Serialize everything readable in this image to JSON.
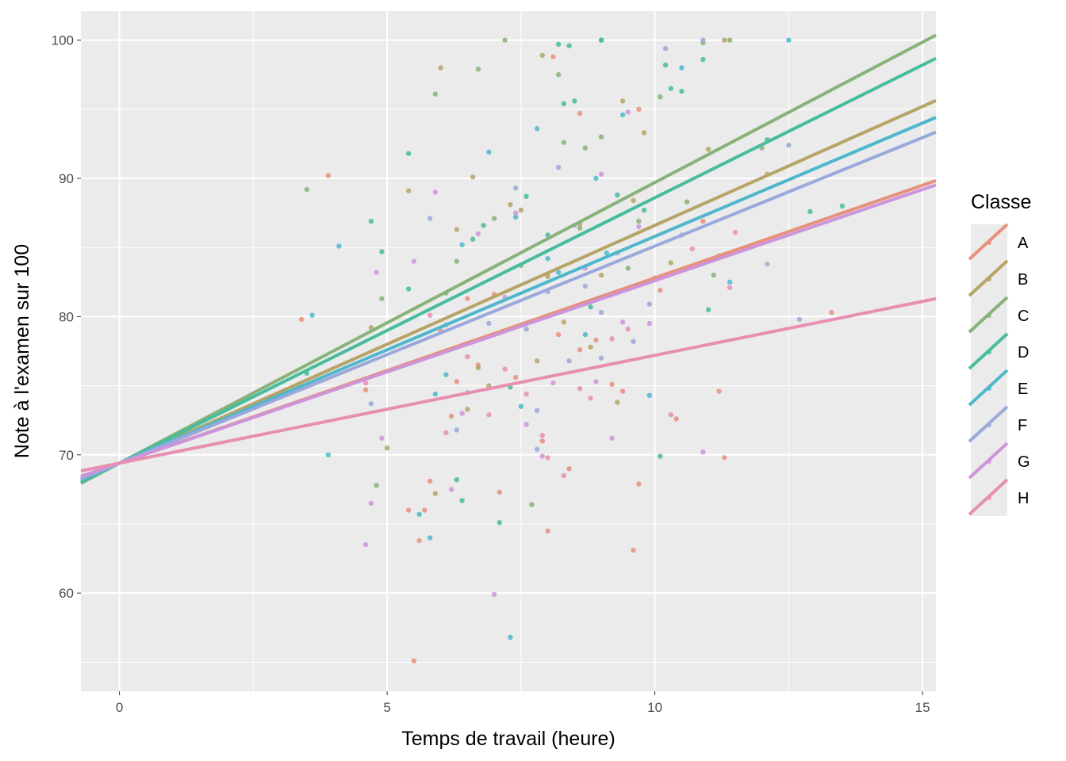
{
  "chart_data": {
    "type": "scatter",
    "title": "",
    "xlabel": "Temps de travail (heure)",
    "ylabel": "Note à l'examen sur 100",
    "xlim": [
      -0.72,
      15.25
    ],
    "ylim": [
      52.9,
      102.1
    ],
    "x_ticks": [
      0,
      5,
      10,
      15
    ],
    "y_ticks": [
      60,
      70,
      80,
      90,
      100
    ],
    "grid": true,
    "legend_position": "right",
    "legend_title": "Classe",
    "series": [
      {
        "name": "A",
        "color": "#e7907c",
        "regression": {
          "intercept": 69.4,
          "slope": 1.34
        },
        "points": [
          [
            3.4,
            79.8
          ],
          [
            3.9,
            90.2
          ],
          [
            4.6,
            74.7
          ],
          [
            5.4,
            66.0
          ],
          [
            5.5,
            55.1
          ],
          [
            5.6,
            63.8
          ],
          [
            5.7,
            66.0
          ],
          [
            5.8,
            68.1
          ],
          [
            6.0,
            79.0
          ],
          [
            6.2,
            72.8
          ],
          [
            6.3,
            75.3
          ],
          [
            6.5,
            81.3
          ],
          [
            6.7,
            76.5
          ],
          [
            7.0,
            81.6
          ],
          [
            7.1,
            67.3
          ],
          [
            7.4,
            75.6
          ],
          [
            7.9,
            71.0
          ],
          [
            8.0,
            64.5
          ],
          [
            8.2,
            78.7
          ],
          [
            8.4,
            69.0
          ],
          [
            8.6,
            77.6
          ],
          [
            8.9,
            78.3
          ],
          [
            9.2,
            75.1
          ],
          [
            9.4,
            74.6
          ],
          [
            9.6,
            63.1
          ],
          [
            9.7,
            67.9
          ],
          [
            10.1,
            81.9
          ],
          [
            10.4,
            72.6
          ],
          [
            10.9,
            86.9
          ],
          [
            11.2,
            74.6
          ],
          [
            11.3,
            69.8
          ],
          [
            13.3,
            80.3
          ],
          [
            8.1,
            98.8
          ],
          [
            8.6,
            94.7
          ],
          [
            9.7,
            95.0
          ]
        ]
      },
      {
        "name": "B",
        "color": "#b5a466",
        "regression": {
          "intercept": 69.4,
          "slope": 1.72
        },
        "points": [
          [
            4.7,
            79.2
          ],
          [
            5.0,
            70.5
          ],
          [
            5.4,
            89.1
          ],
          [
            5.9,
            67.2
          ],
          [
            6.0,
            98.0
          ],
          [
            6.3,
            86.3
          ],
          [
            6.5,
            73.3
          ],
          [
            6.7,
            76.3
          ],
          [
            6.9,
            75.0
          ],
          [
            7.3,
            88.1
          ],
          [
            7.5,
            87.7
          ],
          [
            7.8,
            76.8
          ],
          [
            8.0,
            82.9
          ],
          [
            8.3,
            79.6
          ],
          [
            8.6,
            86.7
          ],
          [
            8.8,
            77.8
          ],
          [
            9.0,
            83.0
          ],
          [
            9.3,
            73.8
          ],
          [
            9.6,
            88.4
          ],
          [
            9.8,
            93.3
          ],
          [
            10.3,
            83.9
          ],
          [
            11.0,
            92.1
          ],
          [
            11.3,
            100.0
          ],
          [
            12.1,
            90.3
          ],
          [
            6.6,
            90.1
          ],
          [
            7.9,
            98.9
          ],
          [
            9.4,
            95.6
          ]
        ]
      },
      {
        "name": "C",
        "color": "#87b278",
        "regression": {
          "intercept": 69.4,
          "slope": 2.03
        },
        "points": [
          [
            3.5,
            89.2
          ],
          [
            4.8,
            67.8
          ],
          [
            4.9,
            81.3
          ],
          [
            5.9,
            96.1
          ],
          [
            6.1,
            81.7
          ],
          [
            6.3,
            84.0
          ],
          [
            6.7,
            97.9
          ],
          [
            7.2,
            100.0
          ],
          [
            7.5,
            83.7
          ],
          [
            7.7,
            66.4
          ],
          [
            8.2,
            97.5
          ],
          [
            8.3,
            92.6
          ],
          [
            8.6,
            86.4
          ],
          [
            8.7,
            92.2
          ],
          [
            9.0,
            100.0
          ],
          [
            9.0,
            93.0
          ],
          [
            9.5,
            83.5
          ],
          [
            9.7,
            86.9
          ],
          [
            10.1,
            95.9
          ],
          [
            10.6,
            88.3
          ],
          [
            10.9,
            99.8
          ],
          [
            11.4,
            100.0
          ],
          [
            12.0,
            92.2
          ],
          [
            11.1,
            83.0
          ],
          [
            7.0,
            87.1
          ]
        ]
      },
      {
        "name": "D",
        "color": "#47bc9e",
        "regression": {
          "intercept": 69.4,
          "slope": 1.92
        },
        "points": [
          [
            3.5,
            75.9
          ],
          [
            4.7,
            86.9
          ],
          [
            4.9,
            84.7
          ],
          [
            5.4,
            91.8
          ],
          [
            5.4,
            82.0
          ],
          [
            6.3,
            68.2
          ],
          [
            6.4,
            66.7
          ],
          [
            6.6,
            85.6
          ],
          [
            6.8,
            86.6
          ],
          [
            7.1,
            65.1
          ],
          [
            7.3,
            74.9
          ],
          [
            7.6,
            88.7
          ],
          [
            8.0,
            85.9
          ],
          [
            8.2,
            99.7
          ],
          [
            8.3,
            95.4
          ],
          [
            8.5,
            95.6
          ],
          [
            8.8,
            80.7
          ],
          [
            9.0,
            100.0
          ],
          [
            9.3,
            88.8
          ],
          [
            9.8,
            87.7
          ],
          [
            10.1,
            69.9
          ],
          [
            10.2,
            98.2
          ],
          [
            10.3,
            96.5
          ],
          [
            10.5,
            96.3
          ],
          [
            10.9,
            98.6
          ],
          [
            11.0,
            80.5
          ],
          [
            12.1,
            92.8
          ],
          [
            12.9,
            87.6
          ],
          [
            13.5,
            88.0
          ],
          [
            8.4,
            99.6
          ]
        ]
      },
      {
        "name": "E",
        "color": "#4fb7cc",
        "regression": {
          "intercept": 69.4,
          "slope": 1.64
        },
        "points": [
          [
            3.6,
            80.1
          ],
          [
            3.9,
            70.0
          ],
          [
            4.1,
            85.1
          ],
          [
            5.6,
            65.7
          ],
          [
            5.8,
            64.0
          ],
          [
            6.1,
            75.8
          ],
          [
            6.4,
            85.2
          ],
          [
            6.9,
            91.9
          ],
          [
            7.3,
            56.8
          ],
          [
            7.5,
            73.5
          ],
          [
            7.8,
            93.6
          ],
          [
            8.0,
            84.2
          ],
          [
            8.2,
            83.2
          ],
          [
            8.7,
            78.7
          ],
          [
            8.9,
            90.0
          ],
          [
            9.1,
            84.6
          ],
          [
            9.4,
            94.6
          ],
          [
            9.9,
            74.3
          ],
          [
            10.5,
            98.0
          ],
          [
            11.4,
            82.5
          ],
          [
            12.5,
            100.0
          ],
          [
            7.4,
            87.2
          ],
          [
            5.9,
            74.4
          ]
        ]
      },
      {
        "name": "F",
        "color": "#9aa8dc",
        "regression": {
          "intercept": 69.4,
          "slope": 1.57
        },
        "points": [
          [
            4.7,
            73.7
          ],
          [
            5.8,
            87.1
          ],
          [
            6.1,
            79.4
          ],
          [
            6.3,
            71.8
          ],
          [
            6.5,
            74.5
          ],
          [
            6.9,
            79.5
          ],
          [
            7.4,
            89.3
          ],
          [
            7.6,
            79.1
          ],
          [
            7.8,
            73.2
          ],
          [
            8.0,
            81.8
          ],
          [
            8.2,
            90.8
          ],
          [
            8.4,
            76.8
          ],
          [
            8.7,
            82.2
          ],
          [
            9.0,
            80.3
          ],
          [
            9.3,
            84.6
          ],
          [
            9.6,
            78.2
          ],
          [
            9.9,
            80.9
          ],
          [
            10.2,
            99.4
          ],
          [
            10.5,
            85.9
          ],
          [
            10.9,
            100.0
          ],
          [
            11.2,
            84.4
          ],
          [
            12.5,
            92.4
          ],
          [
            12.7,
            79.8
          ],
          [
            7.8,
            70.4
          ],
          [
            9.0,
            77.0
          ]
        ]
      },
      {
        "name": "G",
        "color": "#cc95db",
        "regression": {
          "intercept": 69.4,
          "slope": 1.32
        },
        "points": [
          [
            4.6,
            63.5
          ],
          [
            4.7,
            66.5
          ],
          [
            4.8,
            83.2
          ],
          [
            4.9,
            71.2
          ],
          [
            5.5,
            84.0
          ],
          [
            5.9,
            89.0
          ],
          [
            6.2,
            67.5
          ],
          [
            6.4,
            73.0
          ],
          [
            6.7,
            86.0
          ],
          [
            7.0,
            59.9
          ],
          [
            7.2,
            81.4
          ],
          [
            7.4,
            87.5
          ],
          [
            7.6,
            72.2
          ],
          [
            7.9,
            69.9
          ],
          [
            8.1,
            75.2
          ],
          [
            8.5,
            86.6
          ],
          [
            8.7,
            83.5
          ],
          [
            8.9,
            75.3
          ],
          [
            9.2,
            71.2
          ],
          [
            9.4,
            79.6
          ],
          [
            9.7,
            86.5
          ],
          [
            9.9,
            79.5
          ],
          [
            10.9,
            70.2
          ],
          [
            12.1,
            83.8
          ],
          [
            9.5,
            94.8
          ],
          [
            9.0,
            90.3
          ]
        ]
      },
      {
        "name": "H",
        "color": "#e78fb1",
        "regression": {
          "intercept": 69.4,
          "slope": 0.78
        },
        "points": [
          [
            4.6,
            75.2
          ],
          [
            5.8,
            80.1
          ],
          [
            6.1,
            71.6
          ],
          [
            6.5,
            77.1
          ],
          [
            6.9,
            72.9
          ],
          [
            7.2,
            76.2
          ],
          [
            7.6,
            74.4
          ],
          [
            8.0,
            69.8
          ],
          [
            8.3,
            68.5
          ],
          [
            8.6,
            74.8
          ],
          [
            8.8,
            74.1
          ],
          [
            9.2,
            78.4
          ],
          [
            9.5,
            79.1
          ],
          [
            10.0,
            82.8
          ],
          [
            10.3,
            72.9
          ],
          [
            10.7,
            84.9
          ],
          [
            11.5,
            86.1
          ],
          [
            11.4,
            82.1
          ],
          [
            7.9,
            71.4
          ]
        ]
      }
    ]
  }
}
